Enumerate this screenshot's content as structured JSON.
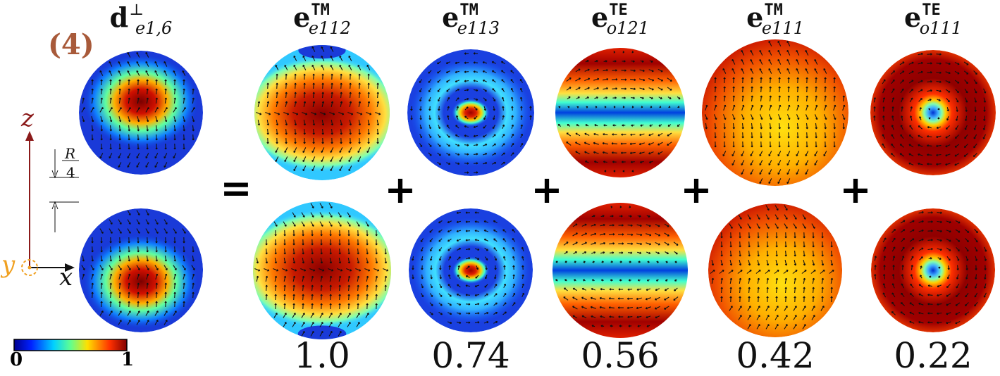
{
  "panel_label": "(4)",
  "equals_sign": "=",
  "plus_sign": "+",
  "columns": [
    {
      "base": "d",
      "sup": "⊥",
      "sub": "e1,6",
      "coefficient": "",
      "pattern": "lhs"
    },
    {
      "base": "e",
      "sup": "TM",
      "sub": "e112",
      "coefficient": "1.0",
      "pattern": "e112"
    },
    {
      "base": "e",
      "sup": "TM",
      "sub": "e113",
      "coefficient": "0.74",
      "pattern": "e113"
    },
    {
      "base": "e",
      "sup": "TE",
      "sub": "o121",
      "coefficient": "0.56",
      "pattern": "o121"
    },
    {
      "base": "e",
      "sup": "TM",
      "sub": "e111",
      "coefficient": "0.42",
      "pattern": "e111"
    },
    {
      "base": "e",
      "sup": "TE",
      "sub": "o111",
      "coefficient": "0.22",
      "pattern": "o111"
    }
  ],
  "axes": {
    "z_label": "z",
    "x_label": "x",
    "y_label": "y",
    "z_color": "#8b1a1a",
    "y_color": "#f0a020"
  },
  "scale_bar": {
    "numerator": "R",
    "denominator": "4"
  },
  "colorbar": {
    "min_label": "0",
    "max_label": "1",
    "colormap": "jet"
  }
}
